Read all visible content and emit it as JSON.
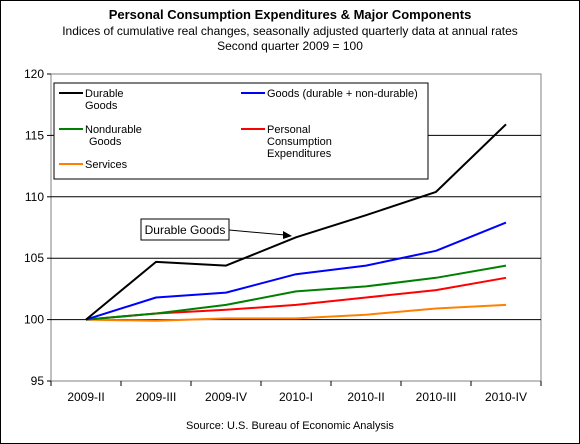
{
  "chart_data": {
    "type": "line",
    "title": "Personal Consumption Expenditures & Major Components",
    "subtitle_lines": [
      "Indices of cumulative real changes, seasonally adjusted quarterly data at annual rates",
      "Second quarter 2009 = 100"
    ],
    "source": "Source: U.S. Bureau of Economic Analysis",
    "categories": [
      "2009-II",
      "2009-III",
      "2009-IV",
      "2010-I",
      "2010-II",
      "2010-III",
      "2010-IV"
    ],
    "ylim": [
      95,
      120
    ],
    "yticks": [
      "95",
      "100",
      "105",
      "110",
      "115",
      "120"
    ],
    "grid": true,
    "legend_position": "top",
    "series": [
      {
        "key": "durable",
        "name_lines": [
          "Durable",
          "Goods"
        ],
        "color": "#000000",
        "values": [
          100.0,
          104.7,
          104.4,
          106.7,
          108.5,
          110.4,
          115.9
        ]
      },
      {
        "key": "goods",
        "name_lines": [
          "Goods (durable + non-durable)"
        ],
        "color": "#0000ff",
        "values": [
          100.0,
          101.8,
          102.2,
          103.7,
          104.4,
          105.6,
          107.9
        ]
      },
      {
        "key": "nondurable",
        "name_lines": [
          "Nondurable",
          "Goods"
        ],
        "color": "#008000",
        "values": [
          100.0,
          100.5,
          101.2,
          102.3,
          102.7,
          103.4,
          104.4
        ]
      },
      {
        "key": "pce",
        "name_lines": [
          "Personal",
          "Consumption",
          "Expenditures"
        ],
        "color": "#ff0000",
        "values": [
          100.0,
          100.5,
          100.8,
          101.2,
          101.8,
          102.4,
          103.4
        ]
      },
      {
        "key": "services",
        "name_lines": [
          "Services"
        ],
        "color": "#ff8000",
        "values": [
          100.0,
          99.9,
          100.1,
          100.1,
          100.4,
          100.9,
          101.2
        ]
      }
    ],
    "annotation": {
      "text": "Durable Goods",
      "series": "durable"
    }
  }
}
